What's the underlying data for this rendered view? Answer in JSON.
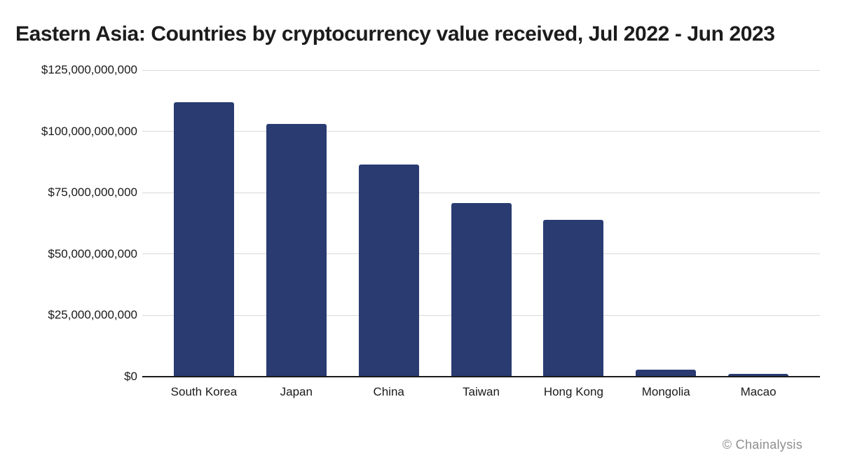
{
  "title": "Eastern Asia: Countries by cryptocurrency value received, Jul 2022 - Jun 2023",
  "watermark": "© Chainalysis",
  "colors": {
    "background": "#FFFFFF",
    "bar": "#293B71",
    "gridline": "#D9D9D9",
    "axis_line": "#1A1A1A",
    "title_text": "#1C1C1C",
    "tick_text": "#1A1A1A",
    "watermark_text": "#8F8F8F"
  },
  "chart_data": {
    "type": "bar",
    "title": "Eastern Asia: Countries by cryptocurrency value received, Jul 2022 - Jun 2023",
    "categories": [
      "South Korea",
      "Japan",
      "China",
      "Taiwan",
      "Hong Kong",
      "Mongolia",
      "Macao"
    ],
    "values": [
      112000000000,
      103000000000,
      86400000000,
      70700000000,
      63800000000,
      3000000000,
      1200000000
    ],
    "xlabel": "",
    "ylabel": "",
    "ylim": [
      0,
      125000000000
    ],
    "y_ticks": [
      {
        "value": 0,
        "label": "$0"
      },
      {
        "value": 25000000000,
        "label": "$25,000,000,000"
      },
      {
        "value": 50000000000,
        "label": "$50,000,000,000"
      },
      {
        "value": 75000000000,
        "label": "$75,000,000,000"
      },
      {
        "value": 100000000000,
        "label": "$100,000,000,000"
      },
      {
        "value": 125000000000,
        "label": "$125,000,000,000"
      }
    ],
    "grid": "horizontal",
    "legend": "none",
    "bar_color": "#293B71"
  }
}
